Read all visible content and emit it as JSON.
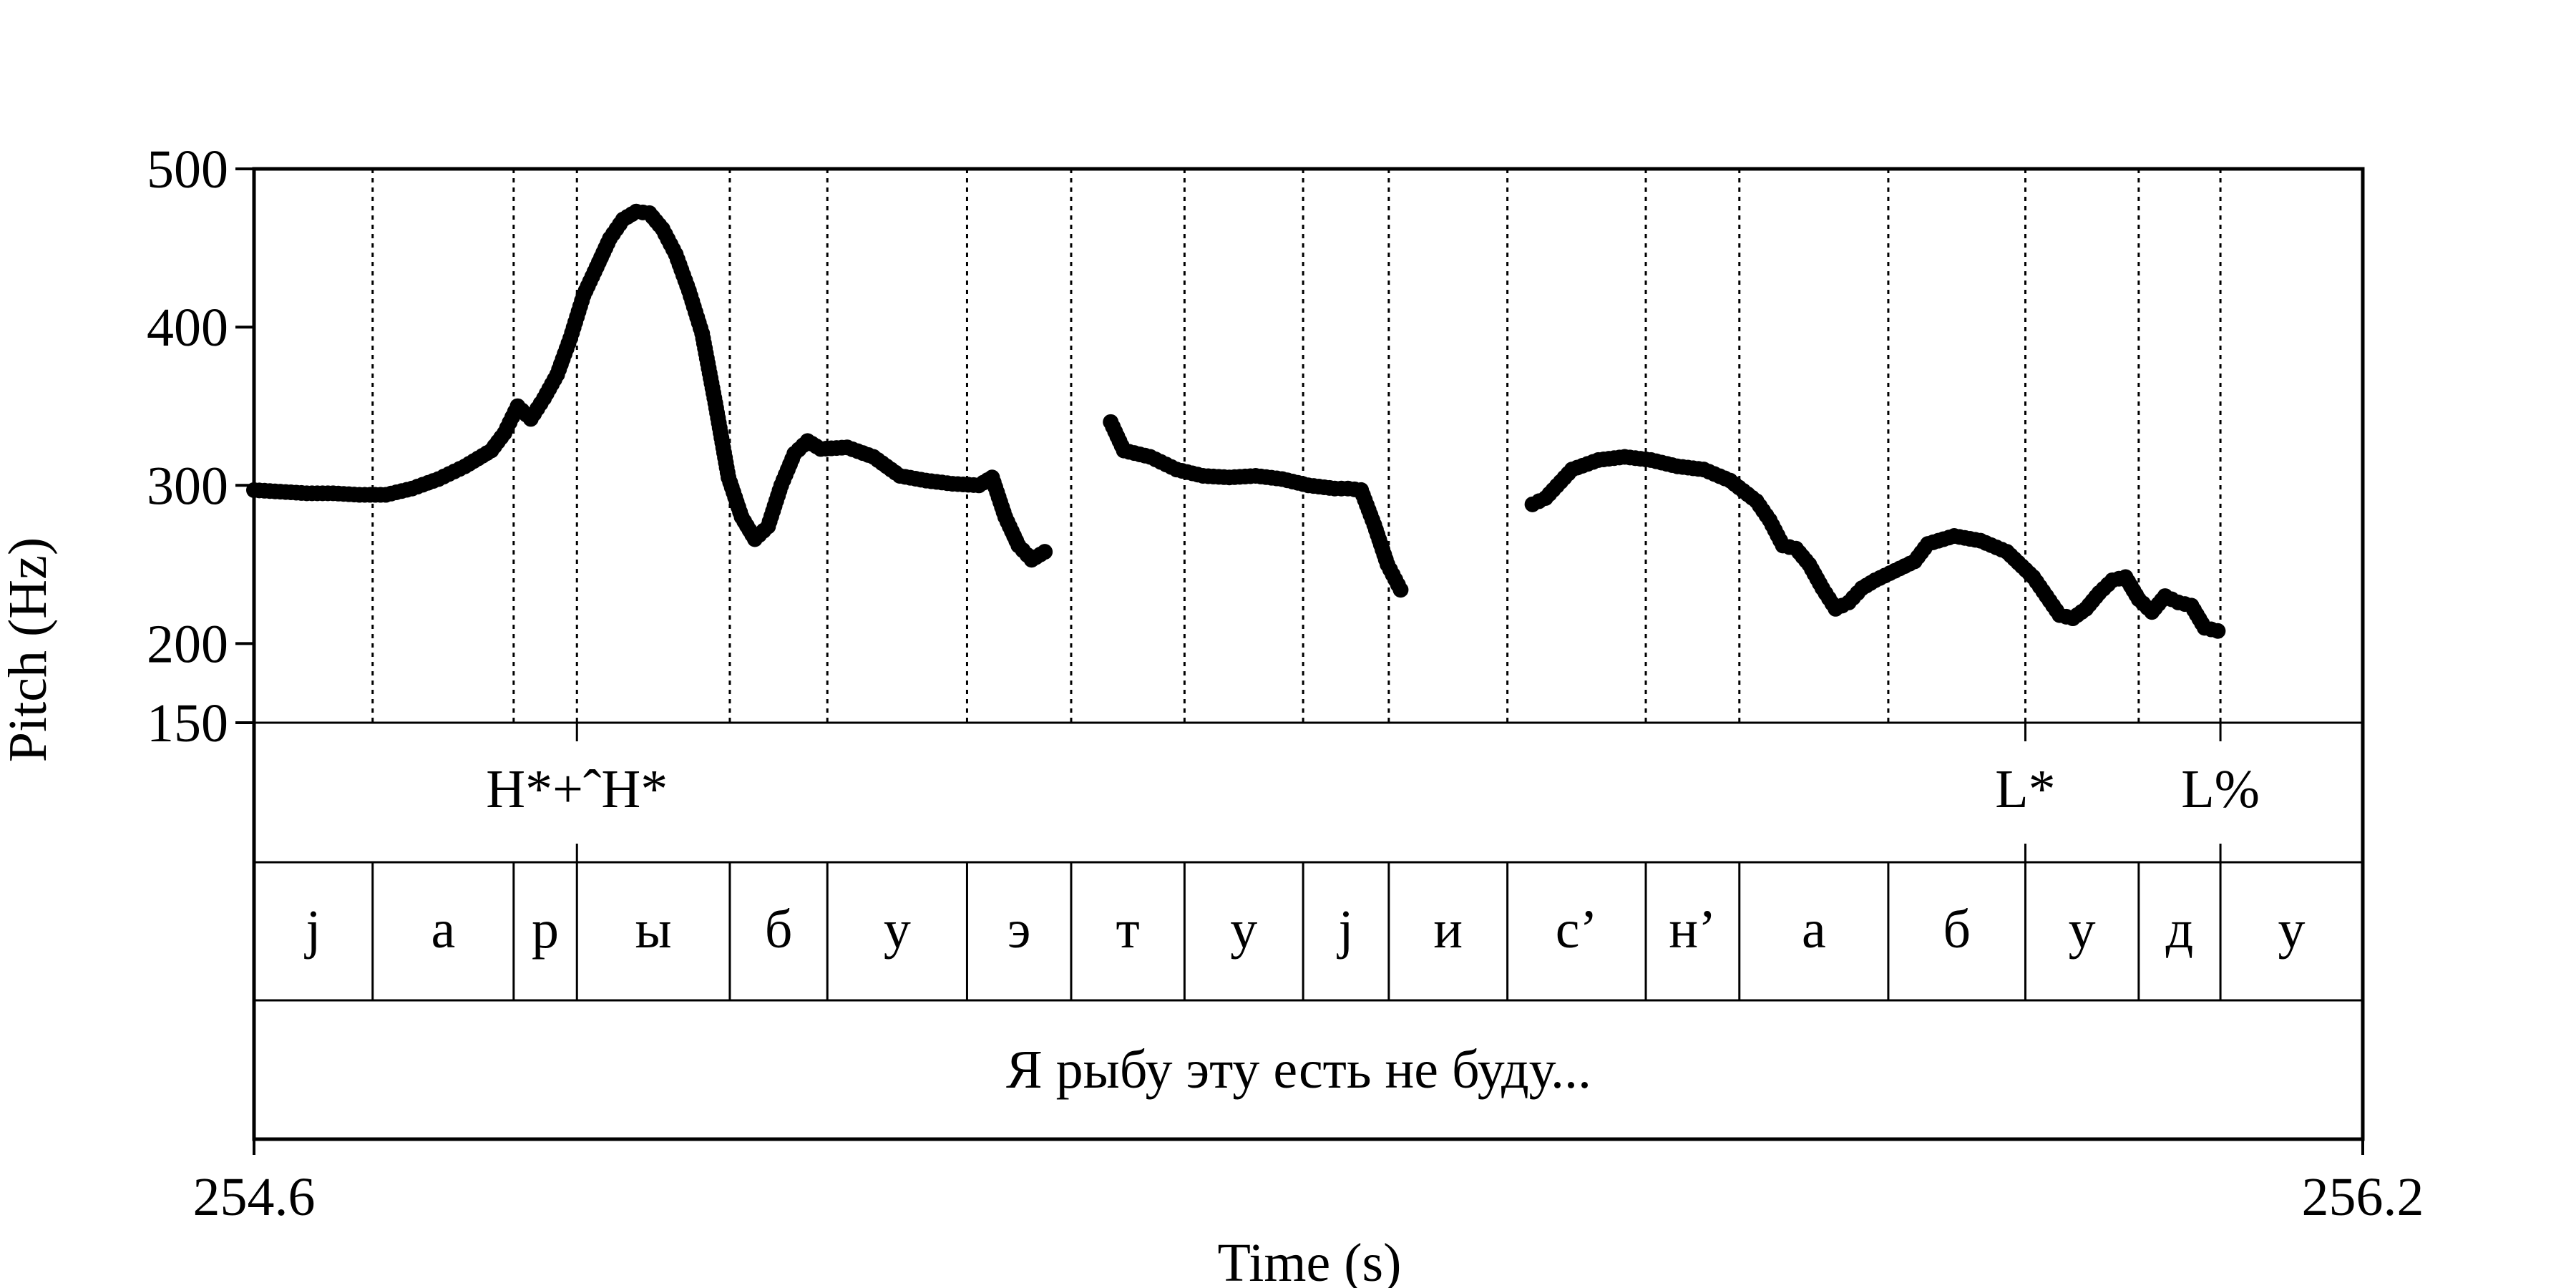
{
  "chart_data": {
    "type": "scatter",
    "title": "",
    "xlabel": "Time (s)",
    "ylabel": "Pitch (Hz)",
    "xlim": [
      254.6,
      256.2
    ],
    "ylim": [
      150,
      500
    ],
    "x_tick_labels": [
      "254.6",
      "256.2"
    ],
    "y_ticks": [
      150,
      200,
      300,
      400,
      500
    ],
    "y_tick_labels": [
      "150",
      "200",
      "300",
      "400",
      "500"
    ],
    "marker_color": "#000000",
    "grid": "dotted vertical lines at segment boundaries",
    "series": [
      {
        "values_xy": [
          [
            254.6,
            297
          ],
          [
            254.62,
            296
          ],
          [
            254.64,
            295
          ],
          [
            254.66,
            295
          ],
          [
            254.68,
            294
          ],
          [
            254.7,
            294
          ],
          [
            254.72,
            298
          ],
          [
            254.74,
            304
          ],
          [
            254.76,
            312
          ],
          [
            254.78,
            322
          ],
          [
            254.79,
            333
          ],
          [
            254.8,
            350
          ],
          [
            254.81,
            342
          ],
          [
            254.82,
            355
          ],
          [
            254.83,
            370
          ],
          [
            254.84,
            393
          ],
          [
            254.85,
            420
          ],
          [
            254.86,
            438
          ],
          [
            254.87,
            456
          ],
          [
            254.88,
            468
          ],
          [
            254.89,
            473
          ],
          [
            254.9,
            472
          ],
          [
            254.91,
            462
          ],
          [
            254.92,
            446
          ],
          [
            254.93,
            423
          ],
          [
            254.94,
            396
          ],
          [
            254.95,
            352
          ],
          [
            254.96,
            305
          ],
          [
            254.97,
            280
          ],
          [
            254.98,
            266
          ],
          [
            254.99,
            274
          ],
          [
            255.0,
            300
          ],
          [
            255.01,
            320
          ],
          [
            255.02,
            328
          ],
          [
            255.03,
            323
          ],
          [
            255.05,
            324
          ],
          [
            255.07,
            318
          ],
          [
            255.09,
            306
          ],
          [
            255.11,
            303
          ],
          [
            255.13,
            301
          ],
          [
            255.15,
            300
          ],
          [
            255.16,
            305
          ],
          [
            255.17,
            280
          ],
          [
            255.18,
            262
          ],
          [
            255.19,
            253
          ],
          [
            255.2,
            258
          ],
          [
            255.25,
            340
          ],
          [
            255.26,
            322
          ],
          [
            255.28,
            318
          ],
          [
            255.3,
            310
          ],
          [
            255.32,
            306
          ],
          [
            255.34,
            305
          ],
          [
            255.36,
            306
          ],
          [
            255.38,
            304
          ],
          [
            255.4,
            300
          ],
          [
            255.42,
            298
          ],
          [
            255.43,
            298
          ],
          [
            255.44,
            297
          ],
          [
            255.45,
            275
          ],
          [
            255.46,
            250
          ],
          [
            255.47,
            234
          ],
          [
            255.57,
            288
          ],
          [
            255.58,
            292
          ],
          [
            255.6,
            310
          ],
          [
            255.62,
            316
          ],
          [
            255.64,
            318
          ],
          [
            255.66,
            316
          ],
          [
            255.68,
            312
          ],
          [
            255.7,
            310
          ],
          [
            255.72,
            303
          ],
          [
            255.74,
            290
          ],
          [
            255.75,
            278
          ],
          [
            255.76,
            262
          ],
          [
            255.77,
            260
          ],
          [
            255.78,
            250
          ],
          [
            255.79,
            235
          ],
          [
            255.8,
            222
          ],
          [
            255.81,
            226
          ],
          [
            255.82,
            235
          ],
          [
            255.83,
            240
          ],
          [
            255.86,
            252
          ],
          [
            255.87,
            263
          ],
          [
            255.89,
            268
          ],
          [
            255.91,
            265
          ],
          [
            255.93,
            258
          ],
          [
            255.95,
            242
          ],
          [
            255.96,
            230
          ],
          [
            255.97,
            218
          ],
          [
            255.98,
            216
          ],
          [
            255.99,
            222
          ],
          [
            256.0,
            232
          ],
          [
            256.01,
            240
          ],
          [
            256.02,
            242
          ],
          [
            256.03,
            228
          ],
          [
            256.04,
            220
          ],
          [
            256.05,
            230
          ],
          [
            256.06,
            226
          ],
          [
            256.07,
            224
          ],
          [
            256.08,
            210
          ],
          [
            256.09,
            208
          ]
        ]
      }
    ],
    "boundaries": [
      254.69,
      254.797,
      254.845,
      254.961,
      255.035,
      255.141,
      255.22,
      255.306,
      255.396,
      255.461,
      255.551,
      255.656,
      255.727,
      255.84,
      255.944,
      256.03,
      256.092
    ],
    "tone_tier": {
      "boundaries": [
        254.845,
        255.944,
        256.092
      ],
      "labels": [
        {
          "text": "H*+ˆH*",
          "at": 254.845
        },
        {
          "text": "L*",
          "at": 255.944
        },
        {
          "text": "L%",
          "at": 256.092
        }
      ]
    },
    "segment_tier": {
      "boundaries": [
        254.69,
        254.797,
        254.845,
        254.961,
        255.035,
        255.141,
        255.22,
        255.306,
        255.396,
        255.461,
        255.551,
        255.656,
        255.727,
        255.84,
        255.944,
        256.03,
        256.092
      ],
      "labels": [
        "j",
        "а",
        "р",
        "ы",
        "б",
        "у",
        "э",
        "т",
        "у",
        "j",
        "и",
        "с’",
        "н’",
        "а",
        "б",
        "у",
        "д",
        "у"
      ]
    },
    "sentence_tier": {
      "text": "Я рыбу эту есть не буду..."
    }
  }
}
